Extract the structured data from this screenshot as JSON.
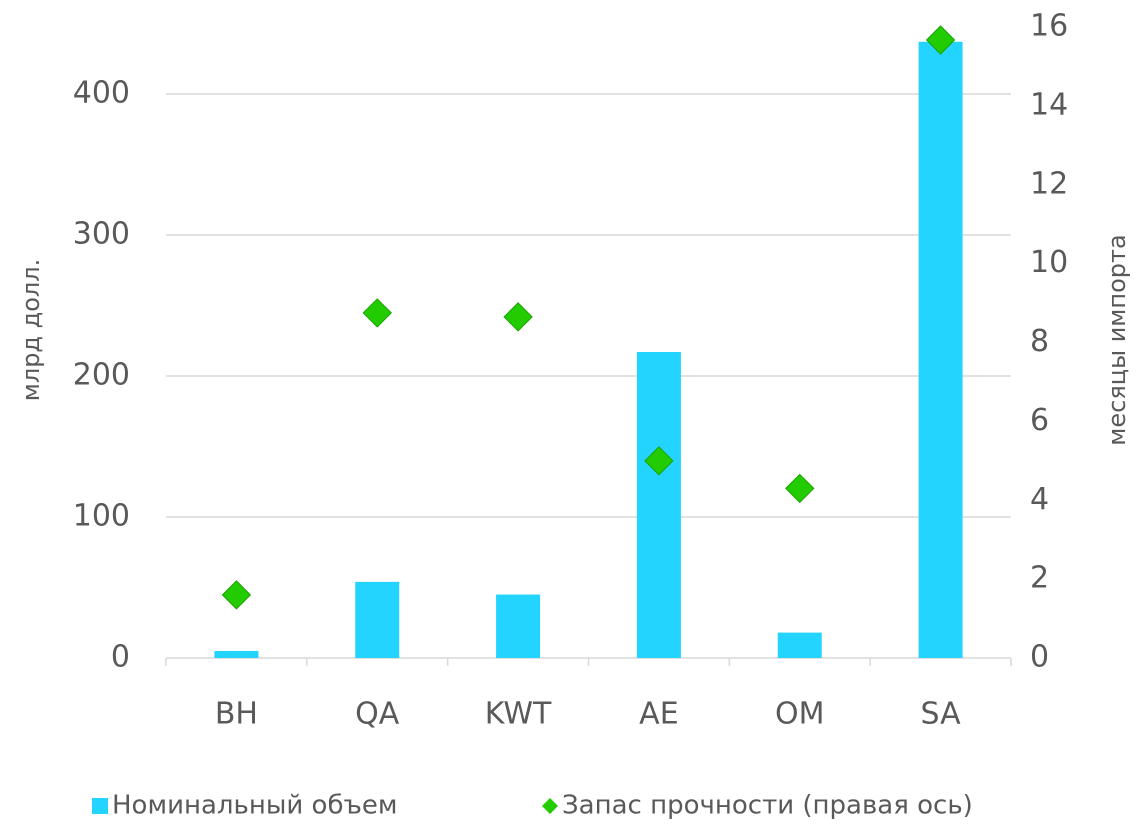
{
  "chart_data": {
    "type": "bar",
    "categories": [
      "BH",
      "QA",
      "KWT",
      "AE",
      "OM",
      "SA"
    ],
    "ylabel": "млрд долл.",
    "y2label": "месяцы импорта",
    "ylim": [
      0,
      447.5
    ],
    "yticks": [
      0,
      100,
      200,
      300,
      400
    ],
    "y2lim": [
      0,
      16
    ],
    "y2ticks": [
      0,
      2,
      4,
      6,
      8,
      10,
      12,
      14,
      16
    ],
    "grid": true,
    "legend": "bottom",
    "series": [
      {
        "name": "Номинальный объем",
        "type": "bar",
        "color": "#22d4ff",
        "values": [
          5,
          54,
          45,
          217,
          18,
          437
        ]
      },
      {
        "name": "Запас прочности (правая ось)",
        "type": "scatter",
        "axis": "y2",
        "color": "#22cc00",
        "values": [
          1.6,
          8.75,
          8.65,
          5.0,
          4.3,
          15.67
        ]
      }
    ]
  }
}
